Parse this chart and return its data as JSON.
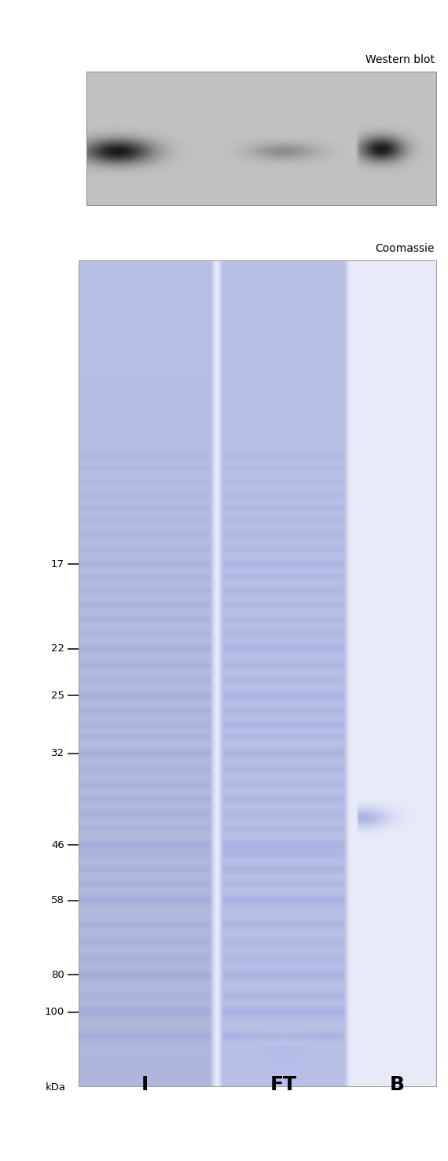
{
  "fig_width": 5.7,
  "fig_height": 14.76,
  "dpi": 100,
  "bg_color": "#ffffff",
  "gel_bg_color": [
    0.91,
    0.92,
    0.97
  ],
  "lane_bg_color": [
    0.72,
    0.75,
    0.9
  ],
  "band_color": [
    0.55,
    0.6,
    0.85
  ],
  "wb_bg_color": [
    0.76,
    0.76,
    0.76
  ],
  "marker_labels": [
    "100",
    "80",
    "58",
    "46",
    "32",
    "25",
    "22",
    "17"
  ],
  "col_labels": [
    "I",
    "FT",
    "B"
  ],
  "coomassie_label": "Coomassie",
  "wb_label": "Western blot",
  "label_kda": "kDa",
  "title_fontsize": 18,
  "label_fontsize": 10,
  "marker_fontsize": 9.5
}
